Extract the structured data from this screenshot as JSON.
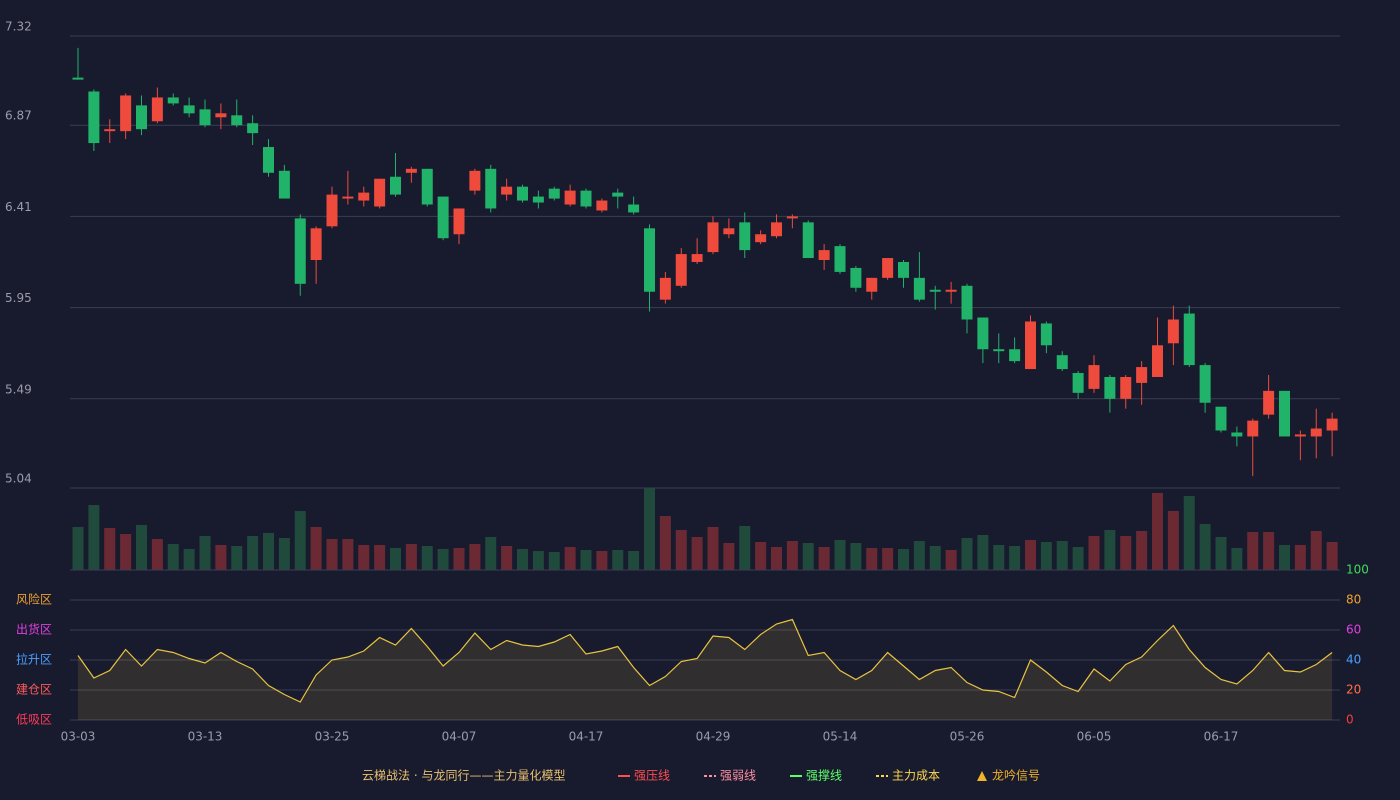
{
  "chart_data": {
    "type": "candlestick",
    "categories": [
      "03-03",
      null,
      null,
      null,
      null,
      null,
      null,
      null,
      "03-13",
      null,
      null,
      null,
      null,
      null,
      null,
      null,
      "03-25",
      null,
      null,
      null,
      null,
      null,
      null,
      null,
      "04-07",
      null,
      null,
      null,
      null,
      null,
      null,
      null,
      "04-17",
      null,
      null,
      null,
      null,
      null,
      null,
      null,
      "04-29",
      null,
      null,
      null,
      null,
      null,
      null,
      null,
      "05-14",
      null,
      null,
      null,
      null,
      null,
      null,
      null,
      "05-26",
      null,
      null,
      null,
      null,
      null,
      null,
      null,
      "06-05",
      null,
      null,
      null,
      null,
      null,
      null,
      null,
      "06-17",
      null,
      null,
      null,
      null,
      null,
      null,
      null
    ],
    "open": [
      7.11,
      7.04,
      6.84,
      6.84,
      6.97,
      6.89,
      7.01,
      6.97,
      6.95,
      6.91,
      6.92,
      6.88,
      6.76,
      6.64,
      6.4,
      6.19,
      6.36,
      6.5,
      6.49,
      6.46,
      6.61,
      6.63,
      6.65,
      6.51,
      6.32,
      6.54,
      6.65,
      6.52,
      6.56,
      6.51,
      6.55,
      6.47,
      6.54,
      6.44,
      6.53,
      6.47,
      6.35,
      5.99,
      6.06,
      6.18,
      6.23,
      6.32,
      6.38,
      6.28,
      6.31,
      6.4,
      6.38,
      6.19,
      6.26,
      6.15,
      6.03,
      6.1,
      6.18,
      6.1,
      6.04,
      6.03,
      6.06,
      5.9,
      5.74,
      5.74,
      5.64,
      5.87,
      5.71,
      5.62,
      5.54,
      5.6,
      5.49,
      5.57,
      5.6,
      5.77,
      5.92,
      5.66,
      5.45,
      5.32,
      5.3,
      5.41,
      5.53,
      5.3,
      5.3,
      5.33
    ],
    "close": [
      7.1,
      6.78,
      6.85,
      7.02,
      6.85,
      7.01,
      6.98,
      6.93,
      6.87,
      6.93,
      6.87,
      6.83,
      6.63,
      6.5,
      6.07,
      6.35,
      6.52,
      6.51,
      6.53,
      6.6,
      6.52,
      6.65,
      6.47,
      6.3,
      6.45,
      6.64,
      6.45,
      6.56,
      6.49,
      6.48,
      6.5,
      6.54,
      6.46,
      6.49,
      6.51,
      6.43,
      6.03,
      6.1,
      6.22,
      6.22,
      6.38,
      6.35,
      6.24,
      6.32,
      6.38,
      6.41,
      6.2,
      6.24,
      6.13,
      6.05,
      6.1,
      6.2,
      6.1,
      5.99,
      6.03,
      6.04,
      5.89,
      5.74,
      5.73,
      5.68,
      5.88,
      5.76,
      5.64,
      5.52,
      5.66,
      5.49,
      5.6,
      5.65,
      5.76,
      5.89,
      5.66,
      5.47,
      5.33,
      5.3,
      5.38,
      5.53,
      5.3,
      5.31,
      5.34,
      5.39
    ],
    "high": [
      7.26,
      7.05,
      6.9,
      7.03,
      7.02,
      7.06,
      7.03,
      7.01,
      7.0,
      6.98,
      7.0,
      6.92,
      6.8,
      6.67,
      6.42,
      6.36,
      6.56,
      6.64,
      6.56,
      6.6,
      6.73,
      6.66,
      6.65,
      6.51,
      6.45,
      6.65,
      6.67,
      6.6,
      6.57,
      6.54,
      6.56,
      6.57,
      6.55,
      6.5,
      6.55,
      6.51,
      6.37,
      6.13,
      6.25,
      6.3,
      6.41,
      6.4,
      6.43,
      6.34,
      6.42,
      6.42,
      6.39,
      6.27,
      6.27,
      6.16,
      6.1,
      6.2,
      6.19,
      6.23,
      6.06,
      6.08,
      6.07,
      5.9,
      5.82,
      5.8,
      5.91,
      5.88,
      5.73,
      5.63,
      5.71,
      5.61,
      5.61,
      5.68,
      5.9,
      5.96,
      5.96,
      5.67,
      5.45,
      5.35,
      5.39,
      5.61,
      5.53,
      5.33,
      5.44,
      5.42
    ],
    "low": [
      7.1,
      6.74,
      6.78,
      6.8,
      6.82,
      6.88,
      6.97,
      6.91,
      6.86,
      6.85,
      6.86,
      6.77,
      6.61,
      6.5,
      6.01,
      6.07,
      6.35,
      6.47,
      6.46,
      6.45,
      6.51,
      6.58,
      6.46,
      6.29,
      6.27,
      6.52,
      6.43,
      6.49,
      6.48,
      6.45,
      6.49,
      6.46,
      6.45,
      6.43,
      6.45,
      6.42,
      5.93,
      5.97,
      6.05,
      6.17,
      6.22,
      6.3,
      6.2,
      6.27,
      6.3,
      6.35,
      6.2,
      6.14,
      6.12,
      6.03,
      5.99,
      6.09,
      6.05,
      5.98,
      5.94,
      5.97,
      5.82,
      5.67,
      5.67,
      5.67,
      5.64,
      5.72,
      5.63,
      5.49,
      5.52,
      5.42,
      5.44,
      5.46,
      5.6,
      5.66,
      5.65,
      5.42,
      5.32,
      5.25,
      5.1,
      5.39,
      5.3,
      5.18,
      5.19,
      5.2
    ],
    "ylim": [
      5.04,
      7.32
    ],
    "yticks": [
      5.04,
      5.49,
      5.95,
      6.41,
      6.87,
      7.32
    ],
    "grid": true,
    "up_color": "#ef4b3c",
    "down_color": "#22b36a",
    "volume": [
      43,
      65,
      42,
      36,
      45,
      31,
      26,
      21,
      34,
      25,
      24,
      34,
      37,
      32,
      59,
      43,
      31,
      31,
      25,
      25,
      22,
      26,
      24,
      21,
      22,
      26,
      33,
      24,
      21,
      19,
      18,
      23,
      20,
      19,
      20,
      19,
      82,
      54,
      40,
      33,
      43,
      27,
      44,
      28,
      23,
      29,
      27,
      23,
      30,
      27,
      22,
      22,
      21,
      29,
      24,
      20,
      32,
      35,
      25,
      24,
      30,
      28,
      29,
      23,
      34,
      40,
      34,
      39,
      77,
      59,
      74,
      46,
      33,
      22,
      38,
      38,
      25,
      25,
      39,
      28
    ],
    "volume_up_color": "#6b2a33",
    "volume_down_color": "#1f4a3c",
    "oscillator": {
      "values": [
        43,
        28,
        33,
        47,
        36,
        47,
        45,
        41,
        38,
        45,
        39,
        34,
        23,
        17,
        12,
        30,
        40,
        42,
        46,
        55,
        50,
        61,
        49,
        36,
        45,
        58,
        47,
        53,
        50,
        49,
        52,
        57,
        44,
        46,
        49,
        35,
        23,
        29,
        39,
        41,
        56,
        55,
        47,
        57,
        64,
        67,
        43,
        45,
        33,
        27,
        33,
        45,
        36,
        27,
        33,
        35,
        25,
        20,
        19,
        15,
        40,
        32,
        23,
        19,
        34,
        26,
        37,
        42,
        53,
        63,
        47,
        35,
        27,
        24,
        33,
        45,
        33,
        32,
        37,
        45
      ],
      "color": "#e8c440",
      "ylim": [
        0,
        100
      ],
      "yticks": [
        0,
        20,
        40,
        60,
        80,
        100
      ],
      "ytick_colors": [
        "#ff3a3a",
        "#ff7040",
        "#4aa0ff",
        "#e040e0",
        "#f0a030",
        "#3ddc5a"
      ],
      "zones": [
        {
          "label": "风险区",
          "value": 80,
          "color": "#f0a030"
        },
        {
          "label": "出货区",
          "value": 60,
          "color": "#e040e0"
        },
        {
          "label": "拉升区",
          "value": 40,
          "color": "#4aa0ff"
        },
        {
          "label": "建仓区",
          "value": 20,
          "color": "#ff5a5a"
        },
        {
          "label": "低吸区",
          "value": 0,
          "color": "#ff3a5a"
        }
      ]
    },
    "legend_title": "云梯战法 · 与龙同行——主力量化模型",
    "legend": [
      {
        "name": "强压线",
        "color": "#ff4d4f",
        "style": "solid"
      },
      {
        "name": "强弱线",
        "color": "#ff8fa0",
        "style": "dashed"
      },
      {
        "name": "强撑线",
        "color": "#5cff6a",
        "style": "solid"
      },
      {
        "name": "主力成本",
        "color": "#ffd84a",
        "style": "dashed"
      },
      {
        "name": "龙吟信号",
        "color": "#f0b429",
        "style": "triangle"
      }
    ]
  }
}
